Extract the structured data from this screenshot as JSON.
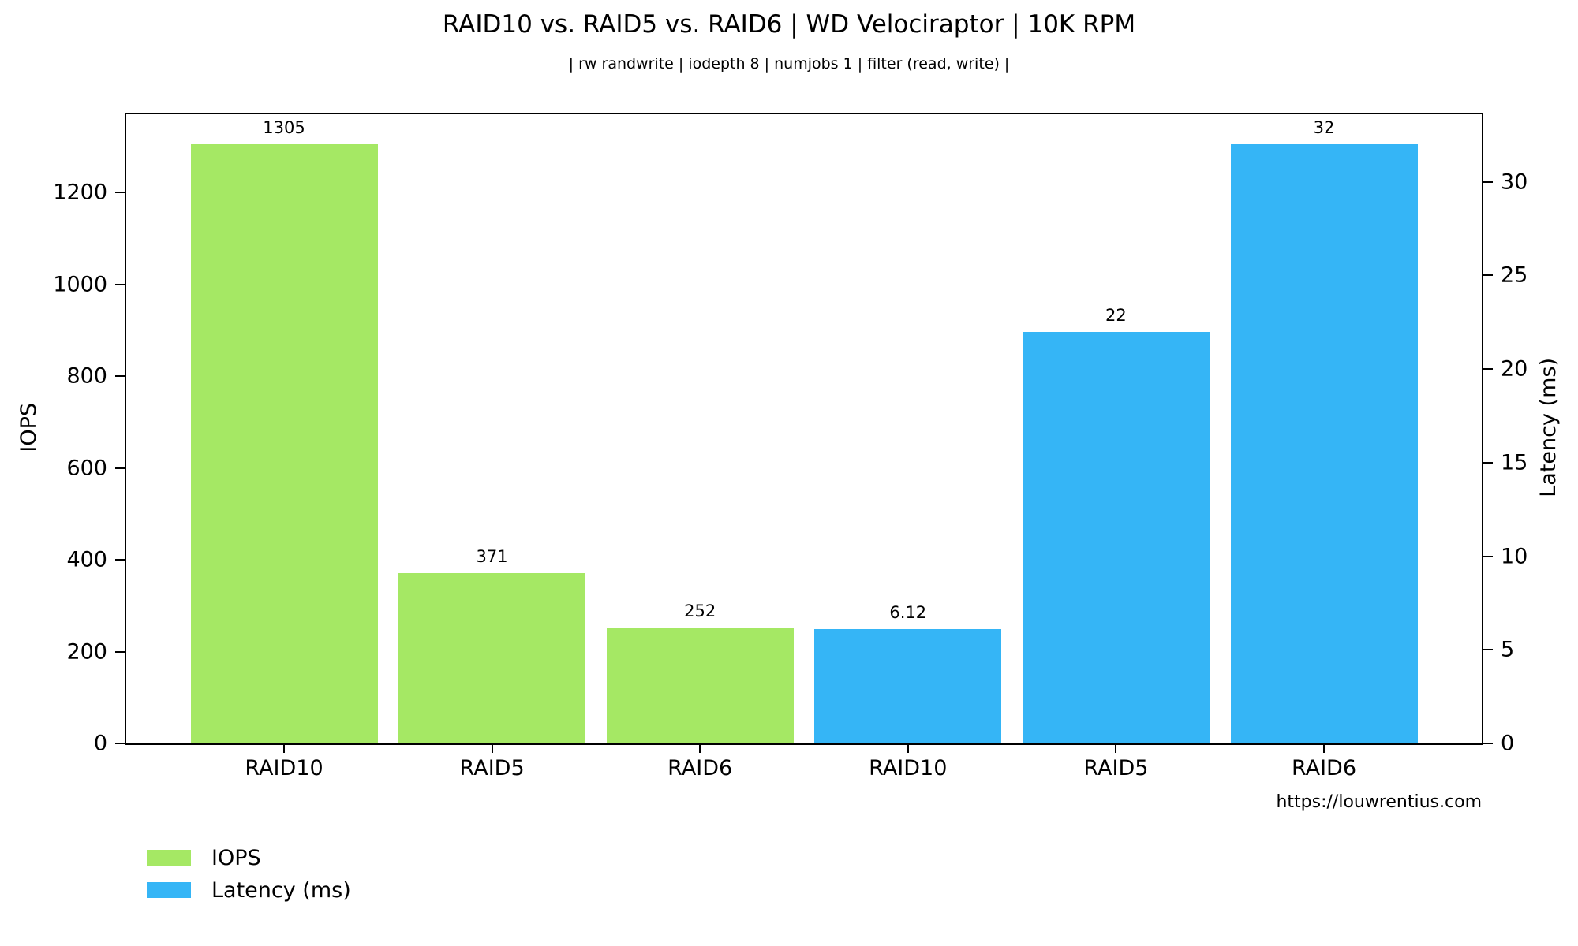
{
  "chart_data": {
    "type": "bar",
    "title": "RAID10 vs. RAID5 vs. RAID6 | WD Velociraptor | 10K RPM",
    "subtitle": "| rw randwrite | iodepth 8 | numjobs 1 | filter (read, write) |",
    "watermark": "https://louwrentius.com",
    "categories": [
      "RAID10",
      "RAID5",
      "RAID6",
      "RAID10",
      "RAID5",
      "RAID6"
    ],
    "series": [
      {
        "name": "IOPS",
        "axis": "left",
        "color": "#a5e864",
        "categories": [
          "RAID10",
          "RAID5",
          "RAID6"
        ],
        "values": [
          1305,
          371,
          252
        ]
      },
      {
        "name": "Latency (ms)",
        "axis": "right",
        "color": "#35b5f6",
        "categories": [
          "RAID10",
          "RAID5",
          "RAID6"
        ],
        "values": [
          6.12,
          22,
          32
        ]
      }
    ],
    "bars": [
      {
        "category": "RAID10",
        "series": 0,
        "value": 1305,
        "label": "1305"
      },
      {
        "category": "RAID5",
        "series": 0,
        "value": 371,
        "label": "371"
      },
      {
        "category": "RAID6",
        "series": 0,
        "value": 252,
        "label": "252"
      },
      {
        "category": "RAID10",
        "series": 1,
        "value": 6.12,
        "label": "6.12"
      },
      {
        "category": "RAID5",
        "series": 1,
        "value": 22,
        "label": "22"
      },
      {
        "category": "RAID6",
        "series": 1,
        "value": 32,
        "label": "32"
      }
    ],
    "left_axis": {
      "label": "IOPS",
      "ticks": [
        0,
        200,
        400,
        600,
        800,
        1000,
        1200
      ],
      "range": [
        0,
        1370
      ]
    },
    "right_axis": {
      "label": "Latency (ms)",
      "ticks": [
        0,
        5,
        10,
        15,
        20,
        25,
        30
      ],
      "range": [
        0,
        33.6
      ]
    },
    "legend": [
      {
        "label": "IOPS",
        "series": 0
      },
      {
        "label": "Latency (ms)",
        "series": 1
      }
    ],
    "legend_position": "lower-left-below-axes",
    "grid": false
  }
}
